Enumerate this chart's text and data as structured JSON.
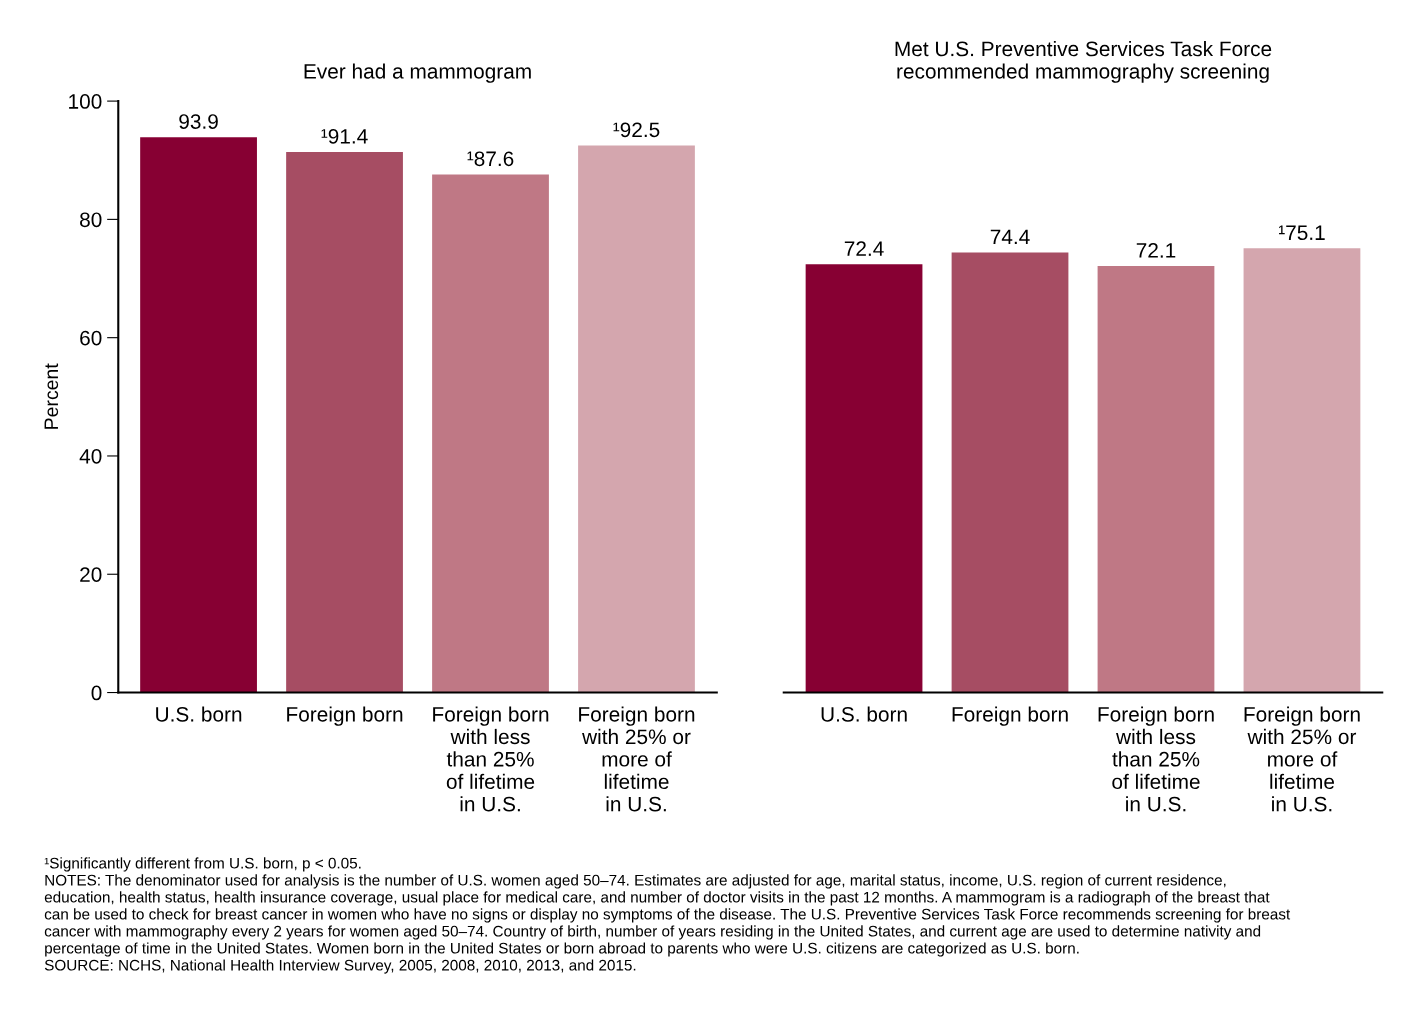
{
  "chart_data": [
    {
      "type": "bar",
      "title": "Ever had a mammogram",
      "ylabel": "Percent",
      "categories": [
        "U.S. born",
        "Foreign born",
        "Foreign born\nwith less\nthan 25%\nof lifetime\nin U.S.",
        "Foreign born\nwith 25% or\nmore of\nlifetime\nin U.S."
      ],
      "values": [
        93.9,
        91.4,
        87.6,
        92.5
      ],
      "value_labels": [
        "93.9",
        "¹91.4",
        "¹87.6",
        "¹92.5"
      ],
      "colors": [
        "#870033",
        "#a64d63",
        "#bf7885",
        "#d4a6ae"
      ],
      "ylim": [
        0,
        100
      ],
      "yticks": [
        0,
        20,
        40,
        60,
        80,
        100
      ],
      "grid": false,
      "legend": false,
      "annotations": [
        "¹Significantly different from U.S. born, p < 0.05.\nNOTES: The denominator used for analysis is the number of U.S. women aged 50–74. Estimates are adjusted for age, marital status, income, U.S. region of current residence,\neducation, health status, health insurance coverage, usual place for medical care, and number of doctor visits in the past 12 months. A mammogram is a radiograph of the breast that\ncan be used to check for breast cancer in women who have no signs or display no symptoms of the disease. The U.S. Preventive Services Task Force recommends screening for breast\ncancer with mammography every 2 years for women aged 50–74. Country of birth, number of years residing in the United States, and current age are used to determine nativity and\npercentage of time in the United States. Women born in the United States or born abroad to parents who were U.S. citizens are categorized as U.S. born.\nSOURCE: NCHS, National Health Interview Survey, 2005, 2008, 2010, 2013, and 2015."
      ]
    },
    {
      "type": "bar",
      "title": "Met U.S. Preventive Services Task Force\nrecommended mammography screening",
      "categories": [
        "U.S. born",
        "Foreign born",
        "Foreign born\nwith less\nthan 25%\nof lifetime\nin U.S.",
        "Foreign born\nwith 25% or\nmore of\nlifetime\nin U.S."
      ],
      "values": [
        72.4,
        74.4,
        72.1,
        75.1
      ],
      "value_labels": [
        "72.4",
        "74.4",
        "72.1",
        "¹75.1"
      ],
      "colors": [
        "#870033",
        "#a64d63",
        "#bf7885",
        "#d4a6ae"
      ],
      "ylim": [
        0,
        100
      ],
      "tick_labels": "x",
      "grid": false,
      "legend": false
    }
  ]
}
